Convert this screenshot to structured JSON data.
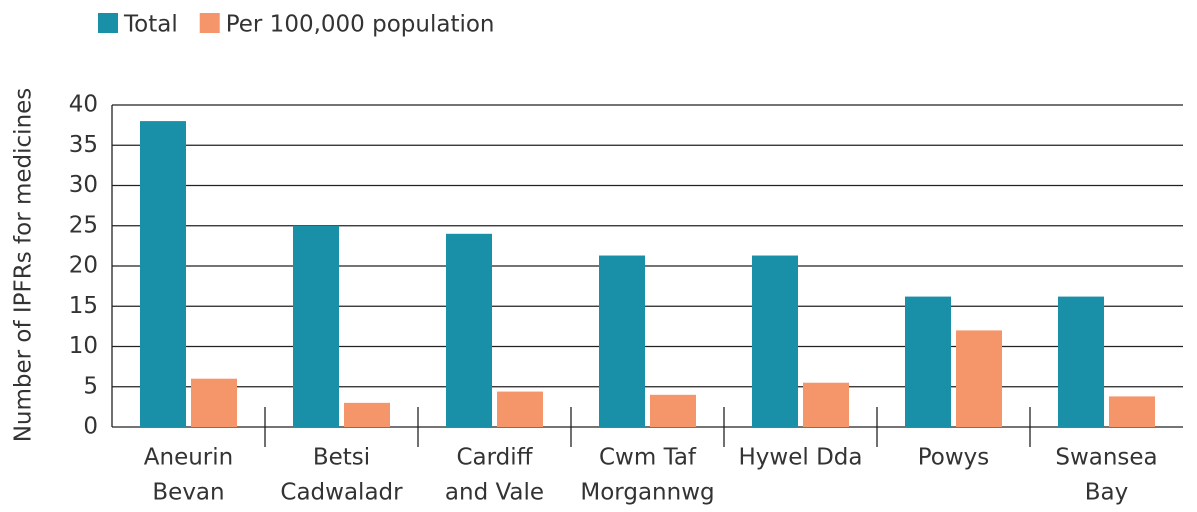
{
  "chart_data": {
    "type": "bar",
    "y_axis_label": "Number of IPFRs  for medicines",
    "categories": [
      [
        "Aneurin",
        "Bevan"
      ],
      [
        "Betsi",
        "Cadwaladr"
      ],
      [
        "Cardiff",
        "and Vale"
      ],
      [
        "Cwm Taf",
        "Morgannwg"
      ],
      [
        "Hywel Dda"
      ],
      [
        "Powys"
      ],
      [
        "Swansea",
        "Bay"
      ]
    ],
    "series": [
      {
        "name": "Total",
        "color": "#1a8fa8",
        "values": [
          38,
          25,
          24,
          21.3,
          21.3,
          16.2,
          16.2
        ]
      },
      {
        "name": "Per 100,000 population",
        "color": "#f4956a",
        "values": [
          6,
          3,
          4.4,
          4,
          5.5,
          12,
          3.8
        ]
      }
    ],
    "ylim": [
      0,
      40
    ],
    "yticks": [
      0,
      5,
      10,
      15,
      20,
      25,
      30,
      35,
      40
    ],
    "grid": true
  }
}
